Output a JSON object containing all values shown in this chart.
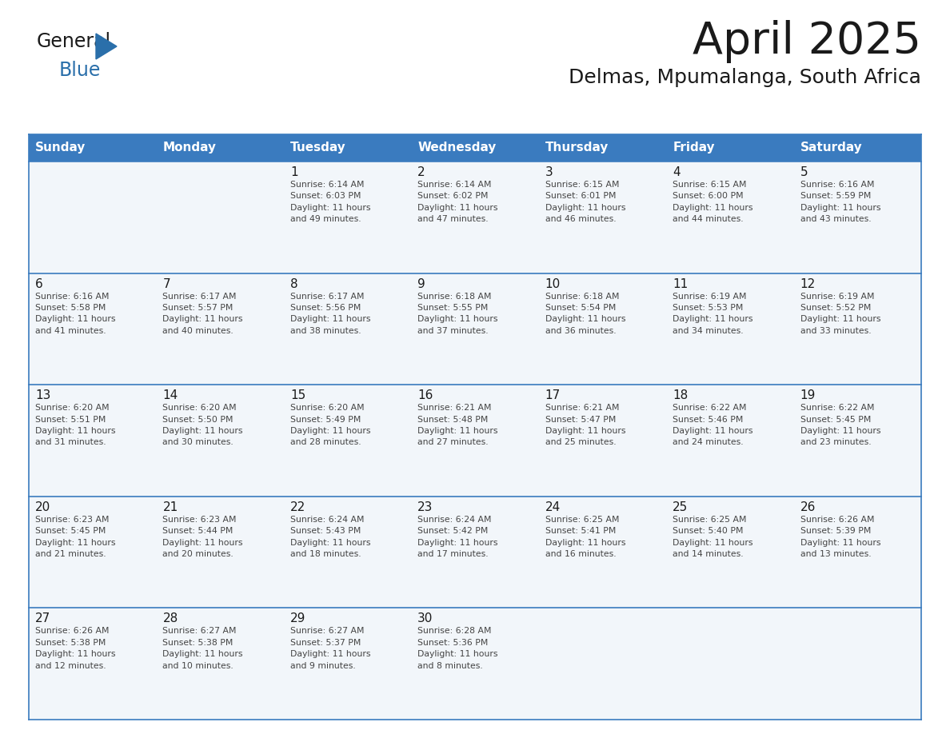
{
  "title": "April 2025",
  "subtitle": "Delmas, Mpumalanga, South Africa",
  "header_bg": "#3a7bbf",
  "header_text": "#ffffff",
  "cell_bg": "#f2f6fa",
  "cell_bg_empty": "#f2f6fa",
  "day_names": [
    "Sunday",
    "Monday",
    "Tuesday",
    "Wednesday",
    "Thursday",
    "Friday",
    "Saturday"
  ],
  "border_color": "#3a7bbf",
  "row_divider_color": "#3a7bbf",
  "title_color": "#1a1a1a",
  "subtitle_color": "#1a1a1a",
  "day_number_color": "#1a1a1a",
  "cell_text_color": "#444444",
  "logo_general_color": "#1a1a1a",
  "logo_blue_color": "#2a6faa",
  "weeks": [
    [
      {
        "day": "",
        "info": ""
      },
      {
        "day": "",
        "info": ""
      },
      {
        "day": "1",
        "info": "Sunrise: 6:14 AM\nSunset: 6:03 PM\nDaylight: 11 hours\nand 49 minutes."
      },
      {
        "day": "2",
        "info": "Sunrise: 6:14 AM\nSunset: 6:02 PM\nDaylight: 11 hours\nand 47 minutes."
      },
      {
        "day": "3",
        "info": "Sunrise: 6:15 AM\nSunset: 6:01 PM\nDaylight: 11 hours\nand 46 minutes."
      },
      {
        "day": "4",
        "info": "Sunrise: 6:15 AM\nSunset: 6:00 PM\nDaylight: 11 hours\nand 44 minutes."
      },
      {
        "day": "5",
        "info": "Sunrise: 6:16 AM\nSunset: 5:59 PM\nDaylight: 11 hours\nand 43 minutes."
      }
    ],
    [
      {
        "day": "6",
        "info": "Sunrise: 6:16 AM\nSunset: 5:58 PM\nDaylight: 11 hours\nand 41 minutes."
      },
      {
        "day": "7",
        "info": "Sunrise: 6:17 AM\nSunset: 5:57 PM\nDaylight: 11 hours\nand 40 minutes."
      },
      {
        "day": "8",
        "info": "Sunrise: 6:17 AM\nSunset: 5:56 PM\nDaylight: 11 hours\nand 38 minutes."
      },
      {
        "day": "9",
        "info": "Sunrise: 6:18 AM\nSunset: 5:55 PM\nDaylight: 11 hours\nand 37 minutes."
      },
      {
        "day": "10",
        "info": "Sunrise: 6:18 AM\nSunset: 5:54 PM\nDaylight: 11 hours\nand 36 minutes."
      },
      {
        "day": "11",
        "info": "Sunrise: 6:19 AM\nSunset: 5:53 PM\nDaylight: 11 hours\nand 34 minutes."
      },
      {
        "day": "12",
        "info": "Sunrise: 6:19 AM\nSunset: 5:52 PM\nDaylight: 11 hours\nand 33 minutes."
      }
    ],
    [
      {
        "day": "13",
        "info": "Sunrise: 6:20 AM\nSunset: 5:51 PM\nDaylight: 11 hours\nand 31 minutes."
      },
      {
        "day": "14",
        "info": "Sunrise: 6:20 AM\nSunset: 5:50 PM\nDaylight: 11 hours\nand 30 minutes."
      },
      {
        "day": "15",
        "info": "Sunrise: 6:20 AM\nSunset: 5:49 PM\nDaylight: 11 hours\nand 28 minutes."
      },
      {
        "day": "16",
        "info": "Sunrise: 6:21 AM\nSunset: 5:48 PM\nDaylight: 11 hours\nand 27 minutes."
      },
      {
        "day": "17",
        "info": "Sunrise: 6:21 AM\nSunset: 5:47 PM\nDaylight: 11 hours\nand 25 minutes."
      },
      {
        "day": "18",
        "info": "Sunrise: 6:22 AM\nSunset: 5:46 PM\nDaylight: 11 hours\nand 24 minutes."
      },
      {
        "day": "19",
        "info": "Sunrise: 6:22 AM\nSunset: 5:45 PM\nDaylight: 11 hours\nand 23 minutes."
      }
    ],
    [
      {
        "day": "20",
        "info": "Sunrise: 6:23 AM\nSunset: 5:45 PM\nDaylight: 11 hours\nand 21 minutes."
      },
      {
        "day": "21",
        "info": "Sunrise: 6:23 AM\nSunset: 5:44 PM\nDaylight: 11 hours\nand 20 minutes."
      },
      {
        "day": "22",
        "info": "Sunrise: 6:24 AM\nSunset: 5:43 PM\nDaylight: 11 hours\nand 18 minutes."
      },
      {
        "day": "23",
        "info": "Sunrise: 6:24 AM\nSunset: 5:42 PM\nDaylight: 11 hours\nand 17 minutes."
      },
      {
        "day": "24",
        "info": "Sunrise: 6:25 AM\nSunset: 5:41 PM\nDaylight: 11 hours\nand 16 minutes."
      },
      {
        "day": "25",
        "info": "Sunrise: 6:25 AM\nSunset: 5:40 PM\nDaylight: 11 hours\nand 14 minutes."
      },
      {
        "day": "26",
        "info": "Sunrise: 6:26 AM\nSunset: 5:39 PM\nDaylight: 11 hours\nand 13 minutes."
      }
    ],
    [
      {
        "day": "27",
        "info": "Sunrise: 6:26 AM\nSunset: 5:38 PM\nDaylight: 11 hours\nand 12 minutes."
      },
      {
        "day": "28",
        "info": "Sunrise: 6:27 AM\nSunset: 5:38 PM\nDaylight: 11 hours\nand 10 minutes."
      },
      {
        "day": "29",
        "info": "Sunrise: 6:27 AM\nSunset: 5:37 PM\nDaylight: 11 hours\nand 9 minutes."
      },
      {
        "day": "30",
        "info": "Sunrise: 6:28 AM\nSunset: 5:36 PM\nDaylight: 11 hours\nand 8 minutes."
      },
      {
        "day": "",
        "info": ""
      },
      {
        "day": "",
        "info": ""
      },
      {
        "day": "",
        "info": ""
      }
    ]
  ]
}
